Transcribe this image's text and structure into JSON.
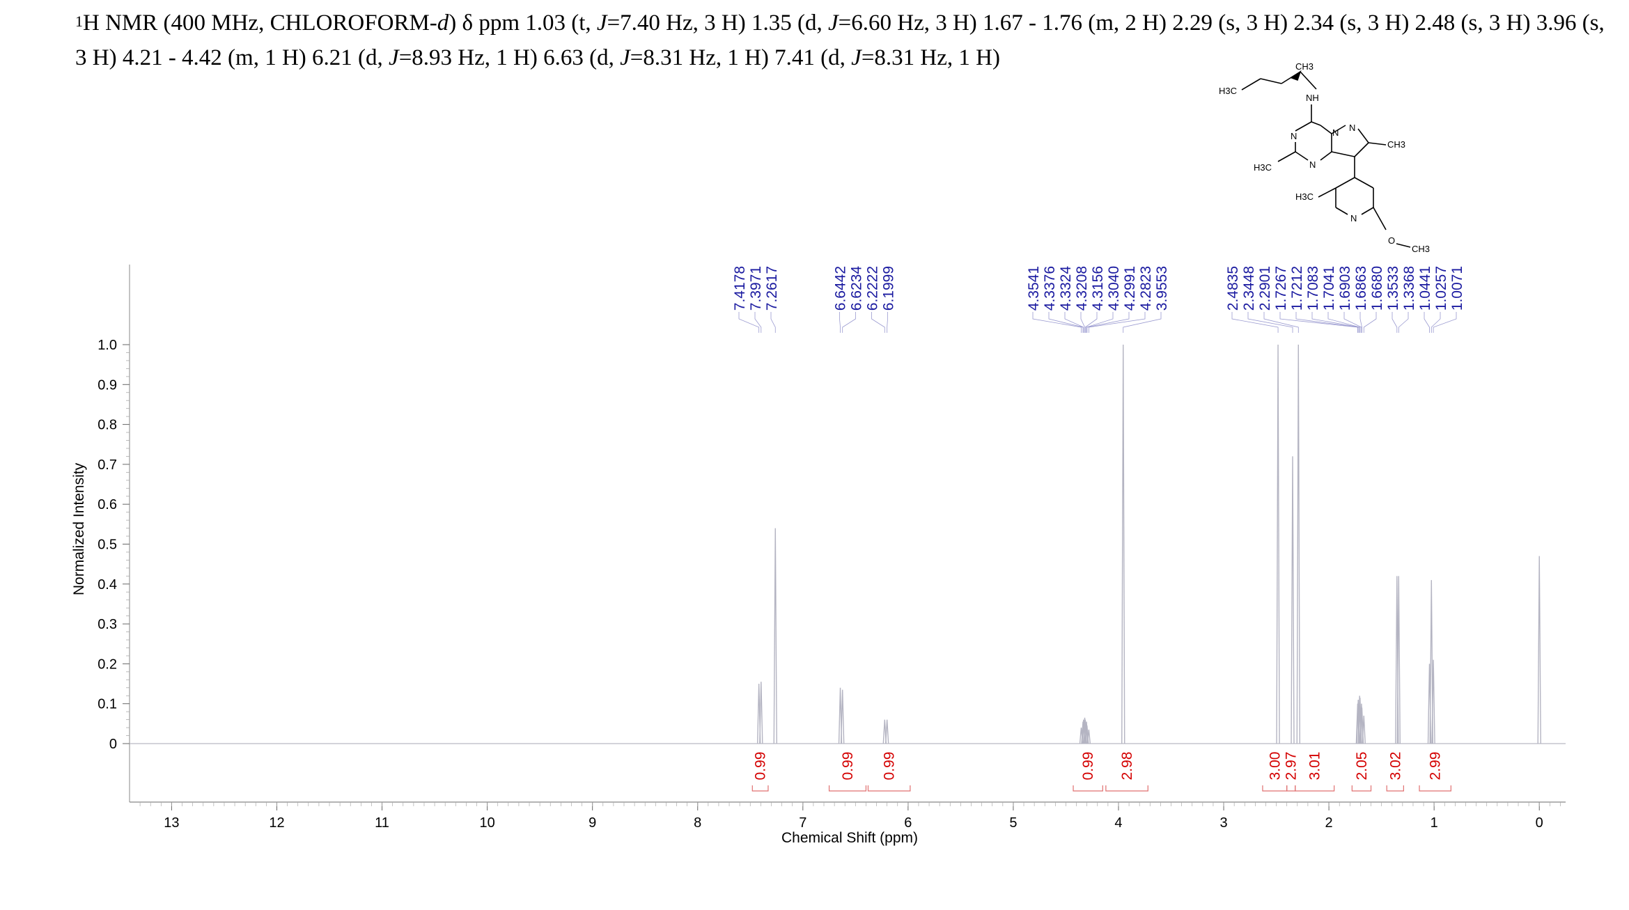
{
  "header": {
    "prefix": "1",
    "nucleus": "H NMR (400 MHz, CHLOROFORM-",
    "solvent_suffix": "d",
    "after_solvent": ") δ ppm 1.03 (t, ",
    "segments": [
      {
        "t": "1",
        "i": false
      },
      {
        "t": "H NMR (400 MHz, CHLOROFORM-",
        "i": false
      },
      {
        "t": "d",
        "i": true
      },
      {
        "t": ") δ ppm 1.03 (t, ",
        "i": false
      },
      {
        "t": "J",
        "i": true
      },
      {
        "t": "=7.40 Hz, 3 H) 1.35 (d, ",
        "i": false
      },
      {
        "t": "J",
        "i": true
      },
      {
        "t": "=6.60 Hz, 3 H) 1.67 - 1.76 (m, 2 H) 2.29 (s, 3 H) 2.34 (s, 3 H) 2.48 (s, 3 H) 3.96 (s, 3 H) 4.21 - 4.42 (m, 1 H) 6.21 (d, ",
        "i": false
      },
      {
        "t": "J",
        "i": true
      },
      {
        "t": "=8.93 Hz, 1 H) 6.63 (d, ",
        "i": false
      },
      {
        "t": "J",
        "i": true
      },
      {
        "t": "=8.31 Hz, 1 H) 7.41 (d, ",
        "i": false
      },
      {
        "t": "J",
        "i": true
      },
      {
        "t": "=8.31 Hz, 1 H)",
        "i": false
      }
    ]
  },
  "structure_labels": {
    "ch3_top": "CH3",
    "h3c_left": "H3C",
    "nh": "NH",
    "n1": "N",
    "n2": "N",
    "n3": "N",
    "n4": "N",
    "ch3_right": "CH3",
    "h3c_ring": "H3C",
    "h3c_pyr": "H3C",
    "n_pyr": "N",
    "o": "O",
    "och3": "CH3"
  },
  "chart_data": {
    "type": "line",
    "xlabel": "Chemical Shift (ppm)",
    "ylabel": "Normalized Intensity",
    "xlim": [
      13.4,
      -0.25
    ],
    "ylim": [
      0,
      1.0
    ],
    "x_ticks": [
      "13",
      "12",
      "11",
      "10",
      "9",
      "8",
      "7",
      "6",
      "5",
      "4",
      "3",
      "2",
      "1",
      "0"
    ],
    "x_tick_values": [
      13,
      12,
      11,
      10,
      9,
      8,
      7,
      6,
      5,
      4,
      3,
      2,
      1,
      0
    ],
    "y_ticks": [
      "0",
      "0.1",
      "0.2",
      "0.3",
      "0.4",
      "0.5",
      "0.6",
      "0.7",
      "0.8",
      "0.9",
      "1.0"
    ],
    "y_tick_values": [
      0,
      0.1,
      0.2,
      0.3,
      0.4,
      0.5,
      0.6,
      0.7,
      0.8,
      0.9,
      1.0
    ],
    "peaks": [
      {
        "ppm": 7.4178,
        "h": 0.15
      },
      {
        "ppm": 7.3971,
        "h": 0.155
      },
      {
        "ppm": 7.2617,
        "h": 0.54
      },
      {
        "ppm": 6.6442,
        "h": 0.14
      },
      {
        "ppm": 6.6234,
        "h": 0.135
      },
      {
        "ppm": 6.2222,
        "h": 0.06
      },
      {
        "ppm": 6.1999,
        "h": 0.06
      },
      {
        "ppm": 4.3541,
        "h": 0.04
      },
      {
        "ppm": 4.3376,
        "h": 0.055
      },
      {
        "ppm": 4.3324,
        "h": 0.06
      },
      {
        "ppm": 4.3208,
        "h": 0.065
      },
      {
        "ppm": 4.3156,
        "h": 0.06
      },
      {
        "ppm": 4.304,
        "h": 0.055
      },
      {
        "ppm": 4.2991,
        "h": 0.045
      },
      {
        "ppm": 4.2823,
        "h": 0.035
      },
      {
        "ppm": 3.9553,
        "h": 1.0
      },
      {
        "ppm": 2.4835,
        "h": 1.0
      },
      {
        "ppm": 2.3448,
        "h": 0.72
      },
      {
        "ppm": 2.2901,
        "h": 1.0
      },
      {
        "ppm": 1.7267,
        "h": 0.1
      },
      {
        "ppm": 1.7212,
        "h": 0.11
      },
      {
        "ppm": 1.7083,
        "h": 0.12
      },
      {
        "ppm": 1.7041,
        "h": 0.115
      },
      {
        "ppm": 1.6903,
        "h": 0.1
      },
      {
        "ppm": 1.6863,
        "h": 0.09
      },
      {
        "ppm": 1.668,
        "h": 0.07
      },
      {
        "ppm": 1.3533,
        "h": 0.42
      },
      {
        "ppm": 1.3368,
        "h": 0.42
      },
      {
        "ppm": 1.0441,
        "h": 0.2
      },
      {
        "ppm": 1.0257,
        "h": 0.41
      },
      {
        "ppm": 1.0071,
        "h": 0.21
      },
      {
        "ppm": 0.0,
        "h": 0.47
      }
    ],
    "peak_labels": [
      {
        "group": 1,
        "labels": [
          "7.4178",
          "7.3971",
          "7.2617"
        ],
        "ppm": [
          7.4178,
          7.3971,
          7.2617
        ]
      },
      {
        "group": 2,
        "labels": [
          "6.6442",
          "6.6234",
          "6.2222",
          "6.1999"
        ],
        "ppm": [
          6.6442,
          6.6234,
          6.2222,
          6.1999
        ]
      },
      {
        "group": 3,
        "labels": [
          "4.3541",
          "4.3376",
          "4.3324",
          "4.3208",
          "4.3156",
          "4.3040",
          "4.2991",
          "4.2823",
          "3.9553"
        ],
        "ppm": [
          4.3541,
          4.3376,
          4.3324,
          4.3208,
          4.3156,
          4.304,
          4.2991,
          4.2823,
          3.9553
        ]
      },
      {
        "group": 4,
        "labels": [
          "2.4835",
          "2.3448",
          "2.2901",
          "1.7267",
          "1.7212",
          "1.7083",
          "1.7041",
          "1.6903",
          "1.6863",
          "1.6680",
          "1.3533",
          "1.3368",
          "1.0441",
          "1.0257",
          "1.0071"
        ],
        "ppm": [
          2.4835,
          2.3448,
          2.2901,
          1.7267,
          1.7212,
          1.7083,
          1.7041,
          1.6903,
          1.6863,
          1.668,
          1.3533,
          1.3368,
          1.0441,
          1.0257,
          1.0071
        ]
      }
    ],
    "integrals": [
      {
        "value": "0.99",
        "from": 7.48,
        "to": 7.33
      },
      {
        "value": "0.99",
        "from": 6.75,
        "to": 6.4
      },
      {
        "value": "0.99",
        "from": 6.38,
        "to": 5.98
      },
      {
        "value": "0.99",
        "from": 4.43,
        "to": 4.15
      },
      {
        "value": "2.98",
        "from": 4.12,
        "to": 3.72
      },
      {
        "value": "3.00",
        "from": 2.63,
        "to": 2.4
      },
      {
        "value": "2.97",
        "from": 2.4,
        "to": 2.32
      },
      {
        "value": "3.01",
        "from": 2.32,
        "to": 1.95
      },
      {
        "value": "2.05",
        "from": 1.78,
        "to": 1.6
      },
      {
        "value": "3.02",
        "from": 1.45,
        "to": 1.29
      },
      {
        "value": "2.99",
        "from": 1.14,
        "to": 0.84
      }
    ]
  }
}
